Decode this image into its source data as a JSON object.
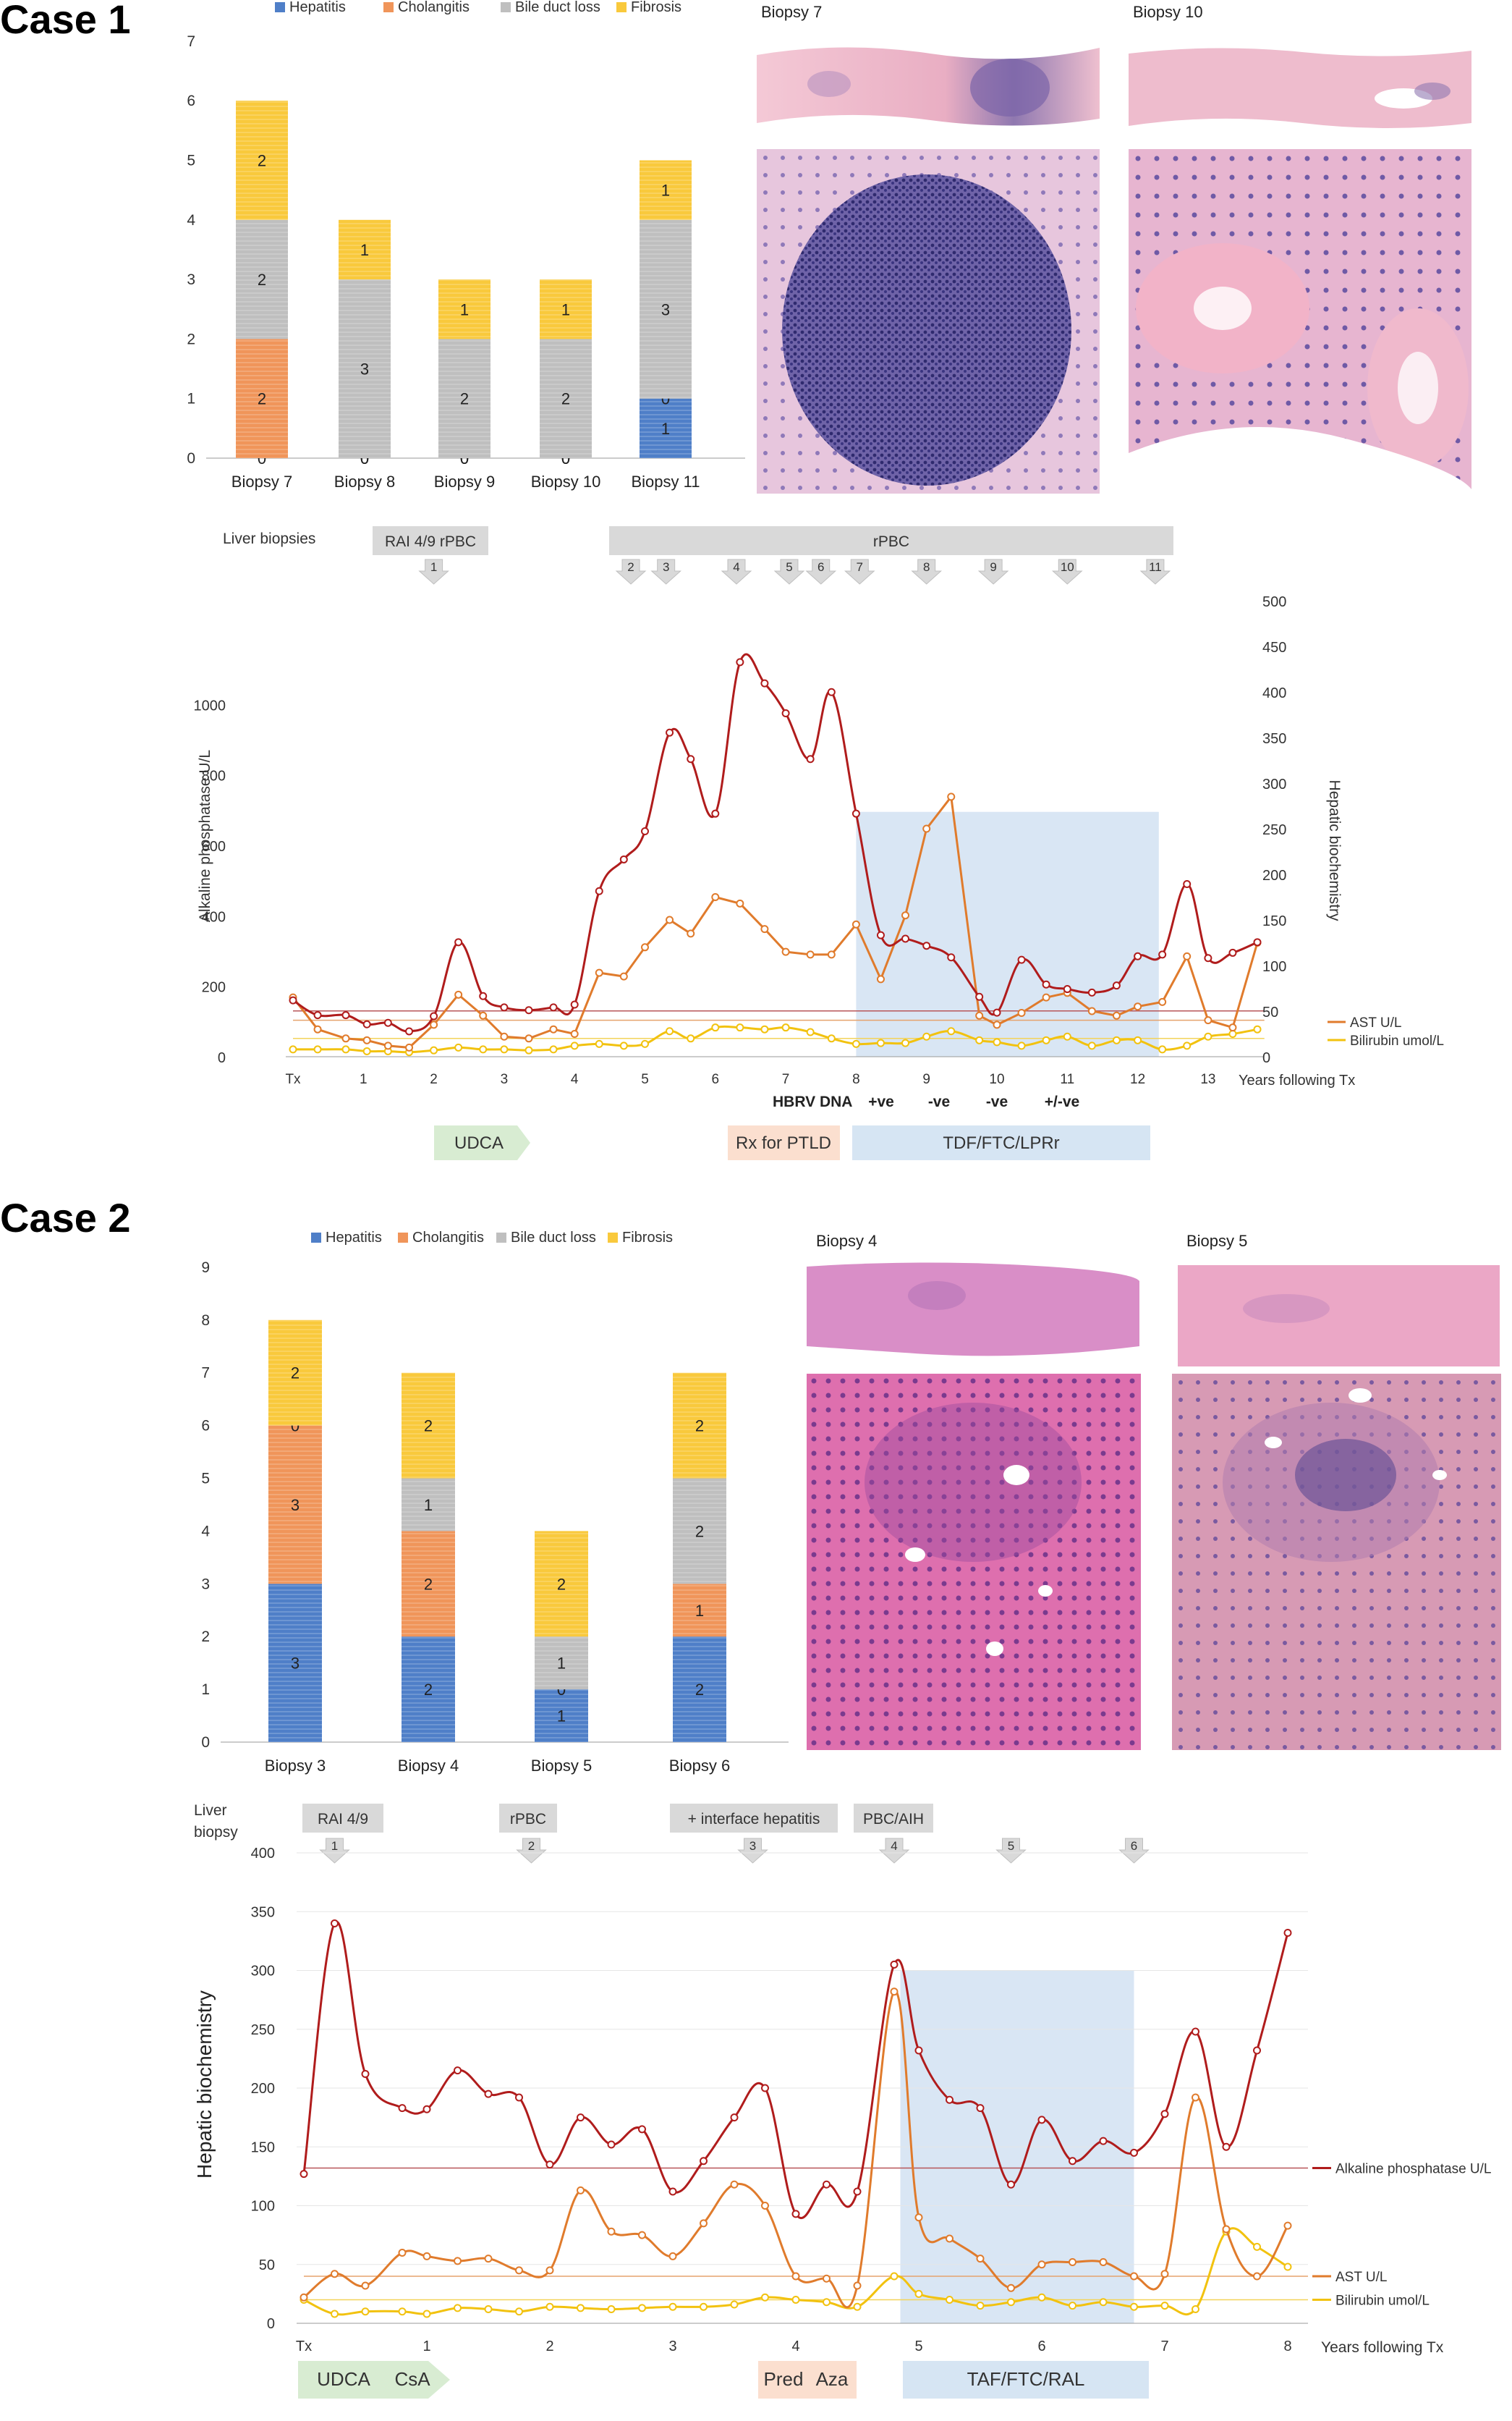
{
  "case1": {
    "title": "Case 1",
    "bar": {
      "legend": [
        {
          "name": "Hepatitis",
          "color": "#4f7fc8"
        },
        {
          "name": "Cholangitis",
          "color": "#f0955a"
        },
        {
          "name": "Bile duct loss",
          "color": "#bfbfbf"
        },
        {
          "name": "Fibrosis",
          "color": "#f9c93c"
        }
      ],
      "ymax": 7,
      "yticks": [
        "0",
        "1",
        "2",
        "3",
        "4",
        "5",
        "6",
        "7"
      ],
      "categories": [
        "Biopsy 7",
        "Biopsy 8",
        "Biopsy 9",
        "Biopsy 10",
        "Biopsy 11"
      ],
      "series": [
        {
          "name": "Hepatitis",
          "values": [
            0,
            0,
            0,
            0,
            1
          ]
        },
        {
          "name": "Cholangitis",
          "values": [
            2,
            0,
            0,
            0,
            0
          ]
        },
        {
          "name": "Bile duct loss",
          "values": [
            2,
            3,
            2,
            2,
            3
          ]
        },
        {
          "name": "Fibrosis",
          "values": [
            2,
            1,
            1,
            1,
            1
          ]
        }
      ]
    },
    "photos": {
      "left_label": "Biopsy 7",
      "right_label": "Biopsy 10"
    },
    "line": {
      "biopsy_header": "Liver biopsies",
      "top_labels": {
        "first": "RAI 4/9 rPBC",
        "span": "rPBC"
      },
      "markers": [
        "1",
        "2",
        "3",
        "4",
        "5",
        "6",
        "7",
        "8",
        "9",
        "10",
        "11"
      ],
      "marker_years": [
        2.0,
        4.8,
        5.3,
        6.3,
        7.05,
        7.5,
        8.05,
        9.0,
        9.95,
        11.0,
        12.25
      ],
      "x_ticks": [
        "Tx",
        "1",
        "2",
        "3",
        "4",
        "5",
        "6",
        "7",
        "8",
        "9",
        "10",
        "11",
        "12",
        "13"
      ],
      "x_title": "Years following Tx",
      "y_left_ticks": [
        "0",
        "200",
        "400",
        "600",
        "800",
        "1000"
      ],
      "y_left_title": "Alkaline phosphatase U/L",
      "y_right_ticks": [
        "0",
        "50",
        "100",
        "150",
        "200",
        "250",
        "300",
        "350",
        "400",
        "450",
        "500"
      ],
      "y_right_title": "Hepatic biochemistry",
      "legend_ast": "AST U/L",
      "legend_bili": "Bilirubin umol/L",
      "hbrv": {
        "label": "HBRV DNA",
        "values": [
          "+ve",
          "-ve",
          "-ve",
          "+/-ve"
        ]
      },
      "treatments": [
        "UDCA",
        "Rx for PTLD",
        "TDF/FTC/LPRr"
      ]
    }
  },
  "case2": {
    "title": "Case 2",
    "bar": {
      "legend": [
        {
          "name": "Hepatitis",
          "color": "#4f7fc8"
        },
        {
          "name": "Cholangitis",
          "color": "#f0955a"
        },
        {
          "name": "Bile duct loss",
          "color": "#bfbfbf"
        },
        {
          "name": "Fibrosis",
          "color": "#f9c93c"
        }
      ],
      "ymax": 9,
      "yticks": [
        "0",
        "1",
        "2",
        "3",
        "4",
        "5",
        "6",
        "7",
        "8",
        "9"
      ],
      "categories": [
        "Biopsy 3",
        "Biopsy 4",
        "Biopsy 5",
        "Biopsy 6"
      ],
      "series": [
        {
          "name": "Hepatitis",
          "values": [
            3,
            2,
            1,
            2
          ]
        },
        {
          "name": "Cholangitis",
          "values": [
            3,
            2,
            0,
            1
          ]
        },
        {
          "name": "Bile duct loss",
          "values": [
            0,
            1,
            1,
            2
          ]
        },
        {
          "name": "Fibrosis",
          "values": [
            2,
            2,
            2,
            2
          ]
        }
      ]
    },
    "photos": {
      "left_label": "Biopsy 4",
      "right_label": "Biopsy 5"
    },
    "line": {
      "biopsy_header_1": "Liver",
      "biopsy_header_2": "biopsy",
      "top_labels": [
        "RAI 4/9",
        "rPBC",
        "+ interface hepatitis",
        "PBC/AIH"
      ],
      "markers": [
        "1",
        "2",
        "3",
        "4",
        "5",
        "6"
      ],
      "marker_years": [
        0.25,
        1.85,
        3.65,
        4.8,
        5.75,
        6.75
      ],
      "x_ticks": [
        "Tx",
        "1",
        "2",
        "3",
        "4",
        "5",
        "6",
        "7",
        "8"
      ],
      "x_title": "Years following Tx",
      "y_ticks": [
        "0",
        "50",
        "100",
        "150",
        "200",
        "250",
        "300",
        "350",
        "400"
      ],
      "y_title": "Hepatic biochemistry",
      "legend_alp": "Alkaline phosphatase U/L",
      "legend_ast": "AST U/L",
      "legend_bili": "Bilirubin umol/L",
      "treatments": [
        "UDCA",
        "CsA",
        "Pred",
        "Aza",
        "TAF/FTC/RAL"
      ]
    }
  },
  "chart_data": [
    {
      "type": "bar",
      "stacked": true,
      "categories": [
        "Biopsy 7",
        "Biopsy 8",
        "Biopsy 9",
        "Biopsy 10",
        "Biopsy 11"
      ],
      "series": [
        {
          "name": "Hepatitis",
          "values": [
            0,
            0,
            0,
            0,
            1
          ]
        },
        {
          "name": "Cholangitis",
          "values": [
            2,
            0,
            0,
            0,
            0
          ]
        },
        {
          "name": "Bile duct loss",
          "values": [
            2,
            3,
            2,
            2,
            3
          ]
        },
        {
          "name": "Fibrosis",
          "values": [
            2,
            1,
            1,
            1,
            1
          ]
        }
      ],
      "ylim": [
        0,
        7
      ],
      "legend": "top"
    },
    {
      "type": "line",
      "xlabel": "Years following Tx",
      "ylabel": "Alkaline phosphatase U/L",
      "ylabel_right": "Hepatic biochemistry",
      "xlim": [
        0,
        13.8
      ],
      "ylim": [
        0,
        1200
      ],
      "ylim_right": [
        0,
        500
      ],
      "reference_lines": {
        "alp": 130,
        "ast": 40,
        "bilirubin": 20
      },
      "shaded_x": [
        8.0,
        12.3
      ],
      "series": [
        {
          "name": "Alkaline phosphatase U/L",
          "axis": "left",
          "color": "#b01c1c",
          "x": [
            0,
            0.35,
            0.75,
            1.05,
            1.35,
            1.65,
            2.0,
            2.35,
            2.7,
            3.0,
            3.35,
            3.7,
            4.0,
            4.35,
            4.7,
            5.0,
            5.35,
            5.65,
            6.0,
            6.35,
            6.7,
            7.0,
            7.35,
            7.65,
            8.0,
            8.35,
            8.7,
            9.0,
            9.35,
            9.75,
            10.0,
            10.35,
            10.7,
            11.0,
            11.35,
            11.7,
            12.0,
            12.35,
            12.7,
            13.0,
            13.35,
            13.7
          ],
          "y": [
            160,
            118,
            118,
            92,
            96,
            72,
            115,
            325,
            172,
            140,
            132,
            140,
            148,
            470,
            560,
            640,
            920,
            845,
            690,
            1120,
            1060,
            975,
            845,
            1035,
            690,
            345,
            335,
            315,
            282,
            170,
            125,
            275,
            205,
            192,
            182,
            202,
            285,
            290,
            490,
            280,
            295,
            325
          ]
        },
        {
          "name": "AST U/L",
          "axis": "right",
          "color": "#e07b2c",
          "x": [
            0,
            0.35,
            0.75,
            1.05,
            1.35,
            1.65,
            2.0,
            2.35,
            2.7,
            3.0,
            3.35,
            3.7,
            4.0,
            4.35,
            4.7,
            5.0,
            5.35,
            5.65,
            6.0,
            6.35,
            6.7,
            7.0,
            7.35,
            7.65,
            8.0,
            8.35,
            8.7,
            9.0,
            9.35,
            9.75,
            10.0,
            10.35,
            10.7,
            11.0,
            11.35,
            11.7,
            12.0,
            12.35,
            12.7,
            13.0,
            13.35,
            13.7
          ],
          "y": [
            65,
            30,
            20,
            18,
            12,
            10,
            35,
            68,
            45,
            22,
            20,
            30,
            25,
            92,
            88,
            120,
            150,
            135,
            175,
            168,
            140,
            115,
            112,
            112,
            145,
            85,
            155,
            250,
            285,
            45,
            35,
            48,
            65,
            70,
            50,
            45,
            55,
            60,
            110,
            40,
            32,
            125
          ]
        },
        {
          "name": "Bilirubin umol/L",
          "axis": "right",
          "color": "#f2c20f",
          "x": [
            0,
            0.35,
            0.75,
            1.05,
            1.35,
            1.65,
            2.0,
            2.35,
            2.7,
            3.0,
            3.35,
            3.7,
            4.0,
            4.35,
            4.7,
            5.0,
            5.35,
            5.65,
            6.0,
            6.35,
            6.7,
            7.0,
            7.35,
            7.65,
            8.0,
            8.35,
            8.7,
            9.0,
            9.35,
            9.75,
            10.0,
            10.35,
            10.7,
            11.0,
            11.35,
            11.7,
            12.0,
            12.35,
            12.7,
            13.0,
            13.35,
            13.7
          ],
          "y": [
            8,
            8,
            8,
            6,
            6,
            5,
            7,
            10,
            8,
            8,
            7,
            8,
            12,
            14,
            12,
            14,
            28,
            20,
            32,
            32,
            30,
            32,
            27,
            20,
            14,
            15,
            15,
            22,
            28,
            18,
            16,
            12,
            18,
            22,
            12,
            18,
            18,
            8,
            12,
            22,
            25,
            30
          ]
        }
      ]
    },
    {
      "type": "bar",
      "stacked": true,
      "categories": [
        "Biopsy 3",
        "Biopsy 4",
        "Biopsy 5",
        "Biopsy 6"
      ],
      "series": [
        {
          "name": "Hepatitis",
          "values": [
            3,
            2,
            1,
            2
          ]
        },
        {
          "name": "Cholangitis",
          "values": [
            3,
            2,
            0,
            1
          ]
        },
        {
          "name": "Bile duct loss",
          "values": [
            0,
            1,
            1,
            2
          ]
        },
        {
          "name": "Fibrosis",
          "values": [
            2,
            2,
            2,
            2
          ]
        }
      ],
      "ylim": [
        0,
        9
      ],
      "legend": "top"
    },
    {
      "type": "line",
      "xlabel": "Years following Tx",
      "ylabel": "Hepatic biochemistry",
      "xlim": [
        0,
        8.2
      ],
      "ylim": [
        0,
        400
      ],
      "reference_lines": {
        "alp": 132,
        "ast": 40,
        "bilirubin": 20
      },
      "shaded_x": [
        4.85,
        6.75
      ],
      "series": [
        {
          "name": "Alkaline phosphatase U/L",
          "color": "#b01c1c",
          "x": [
            0,
            0.25,
            0.5,
            0.8,
            1.0,
            1.25,
            1.5,
            1.75,
            2.0,
            2.25,
            2.5,
            2.75,
            3.0,
            3.25,
            3.5,
            3.75,
            4.0,
            4.25,
            4.5,
            4.8,
            5.0,
            5.25,
            5.5,
            5.75,
            6.0,
            6.25,
            6.5,
            6.75,
            7.0,
            7.25,
            7.5,
            7.75,
            8.0
          ],
          "y": [
            127,
            340,
            212,
            183,
            182,
            215,
            195,
            192,
            135,
            175,
            152,
            165,
            112,
            138,
            175,
            200,
            93,
            118,
            112,
            305,
            232,
            190,
            183,
            118,
            173,
            138,
            155,
            145,
            178,
            248,
            150,
            232,
            332
          ]
        },
        {
          "name": "AST U/L",
          "color": "#e07b2c",
          "x": [
            0,
            0.25,
            0.5,
            0.8,
            1.0,
            1.25,
            1.5,
            1.75,
            2.0,
            2.25,
            2.5,
            2.75,
            3.0,
            3.25,
            3.5,
            3.75,
            4.0,
            4.25,
            4.5,
            4.8,
            5.0,
            5.25,
            5.5,
            5.75,
            6.0,
            6.25,
            6.5,
            6.75,
            7.0,
            7.25,
            7.5,
            7.75,
            8.0
          ],
          "y": [
            22,
            42,
            32,
            60,
            57,
            53,
            55,
            45,
            45,
            113,
            78,
            75,
            57,
            85,
            118,
            100,
            40,
            38,
            32,
            282,
            90,
            72,
            55,
            30,
            50,
            52,
            52,
            40,
            42,
            192,
            80,
            40,
            83
          ]
        },
        {
          "name": "Bilirubin umol/L",
          "color": "#f2c20f",
          "x": [
            0,
            0.25,
            0.5,
            0.8,
            1.0,
            1.25,
            1.5,
            1.75,
            2.0,
            2.25,
            2.5,
            2.75,
            3.0,
            3.25,
            3.5,
            3.75,
            4.0,
            4.25,
            4.5,
            4.8,
            5.0,
            5.25,
            5.5,
            5.75,
            6.0,
            6.25,
            6.5,
            6.75,
            7.0,
            7.25,
            7.5,
            7.75,
            8.0
          ],
          "y": [
            20,
            8,
            10,
            10,
            8,
            13,
            12,
            10,
            14,
            13,
            12,
            13,
            14,
            14,
            16,
            22,
            20,
            18,
            14,
            40,
            25,
            20,
            15,
            18,
            22,
            15,
            18,
            14,
            15,
            12,
            78,
            65,
            48
          ]
        }
      ]
    }
  ]
}
